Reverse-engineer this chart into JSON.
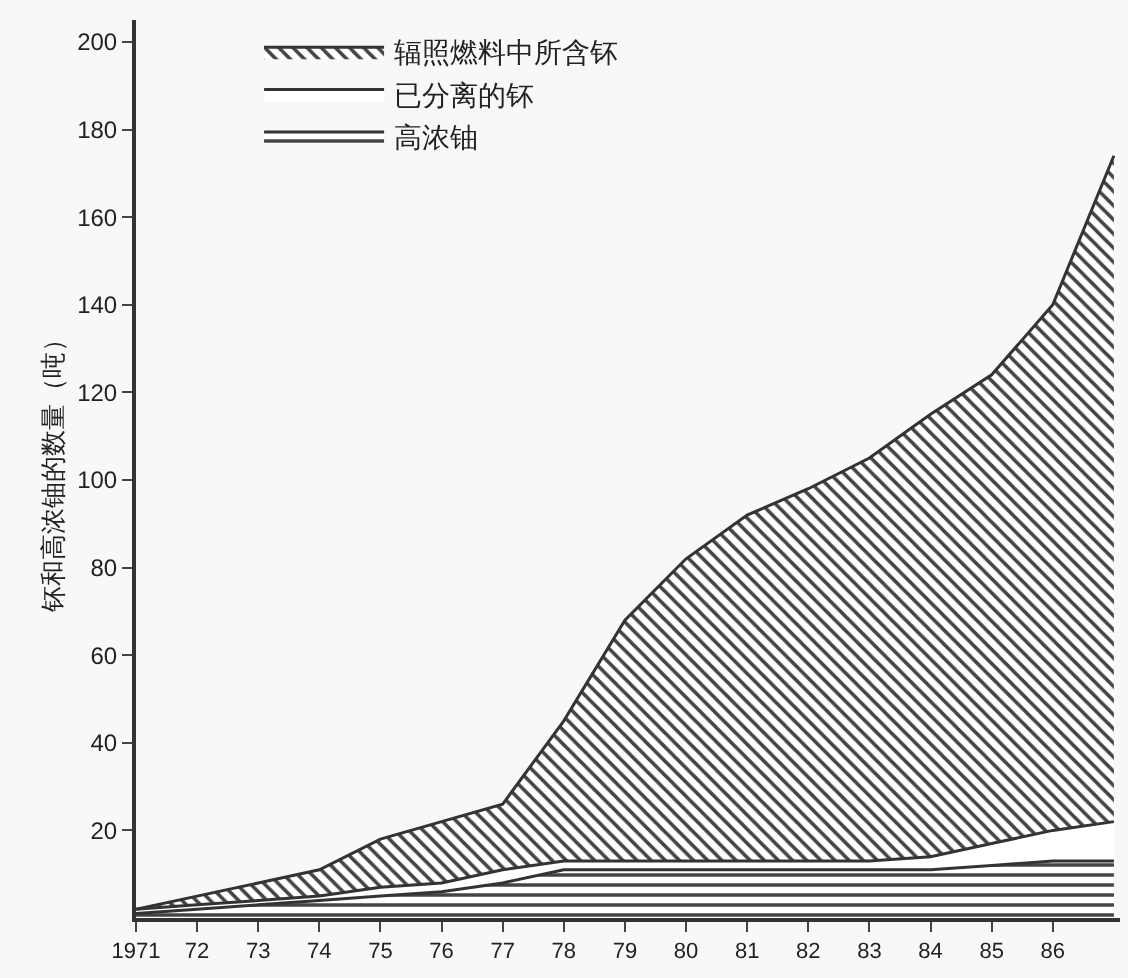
{
  "chart_data": {
    "type": "area",
    "stacked": true,
    "ylabel": "钚和高浓铀的数量（吨）",
    "x": [
      1971,
      1972,
      1973,
      1974,
      1975,
      1976,
      1977,
      1978,
      1979,
      1980,
      1981,
      1982,
      1983,
      1984,
      1985,
      1986,
      1987
    ],
    "series": [
      {
        "name": "高浓铀",
        "color": "#444444",
        "values": [
          1,
          2,
          3,
          4,
          5,
          6,
          8,
          11,
          11,
          11,
          11,
          11,
          11,
          11,
          12,
          13,
          13
        ]
      },
      {
        "name": "已分离的钚",
        "color": "#ffffff",
        "values": [
          1,
          1,
          1,
          1,
          2,
          2,
          3,
          2,
          2,
          2,
          2,
          2,
          2,
          3,
          5,
          7,
          9
        ]
      },
      {
        "name": "辐照燃料中所含钚",
        "color": "#444444",
        "values": [
          0,
          2,
          4,
          6,
          11,
          14,
          15,
          32,
          55,
          69,
          79,
          85,
          92,
          101,
          107,
          120,
          152
        ]
      }
    ],
    "xlim": [
      1971,
      1987.1
    ],
    "xticks": [
      1971,
      {
        "value": 1972,
        "label": "72"
      },
      {
        "value": 1973,
        "label": "73"
      },
      {
        "value": 1974,
        "label": "74"
      },
      {
        "value": 1975,
        "label": "75"
      },
      {
        "value": 1976,
        "label": "76"
      },
      {
        "value": 1977,
        "label": "77"
      },
      {
        "value": 1978,
        "label": "78"
      },
      {
        "value": 1979,
        "label": "79"
      },
      {
        "value": 1980,
        "label": "80"
      },
      {
        "value": 1981,
        "label": "81"
      },
      {
        "value": 1982,
        "label": "82"
      },
      {
        "value": 1983,
        "label": "83"
      },
      {
        "value": 1984,
        "label": "84"
      },
      {
        "value": 1985,
        "label": "85"
      },
      {
        "value": 1986,
        "label": "86"
      }
    ],
    "ylim": [
      0,
      205
    ],
    "yticks": [
      20,
      40,
      60,
      80,
      100,
      120,
      140,
      160,
      180,
      200
    ],
    "grid": false,
    "legend": "top left"
  }
}
